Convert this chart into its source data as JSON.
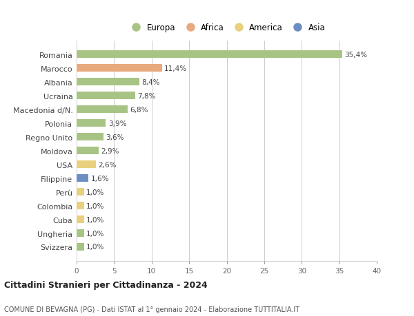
{
  "countries": [
    "Romania",
    "Marocco",
    "Albania",
    "Ucraina",
    "Macedonia d/N.",
    "Polonia",
    "Regno Unito",
    "Moldova",
    "USA",
    "Filippine",
    "Perù",
    "Colombia",
    "Cuba",
    "Ungheria",
    "Svizzera"
  ],
  "values": [
    35.4,
    11.4,
    8.4,
    7.8,
    6.8,
    3.9,
    3.6,
    2.9,
    2.6,
    1.6,
    1.0,
    1.0,
    1.0,
    1.0,
    1.0
  ],
  "labels": [
    "35,4%",
    "11,4%",
    "8,4%",
    "7,8%",
    "6,8%",
    "3,9%",
    "3,6%",
    "2,9%",
    "2,6%",
    "1,6%",
    "1,0%",
    "1,0%",
    "1,0%",
    "1,0%",
    "1,0%"
  ],
  "continents": [
    "Europa",
    "Africa",
    "Europa",
    "Europa",
    "Europa",
    "Europa",
    "Europa",
    "Europa",
    "America",
    "Asia",
    "America",
    "America",
    "America",
    "Europa",
    "Europa"
  ],
  "colors": {
    "Europa": "#a8c484",
    "Africa": "#e8a97e",
    "America": "#e8d07e",
    "Asia": "#6b8ec2"
  },
  "legend_order": [
    "Europa",
    "Africa",
    "America",
    "Asia"
  ],
  "xlim": [
    0,
    40
  ],
  "xticks": [
    0,
    5,
    10,
    15,
    20,
    25,
    30,
    35,
    40
  ],
  "title": "Cittadini Stranieri per Cittadinanza - 2024",
  "subtitle": "COMUNE DI BEVAGNA (PG) - Dati ISTAT al 1° gennaio 2024 - Elaborazione TUTTITALIA.IT",
  "background_color": "#ffffff",
  "grid_color": "#cccccc",
  "bar_height": 0.55
}
